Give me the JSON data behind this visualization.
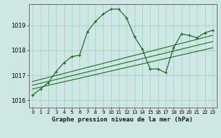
{
  "xlabel": "Graphe pression niveau de la mer (hPa)",
  "bg_color": "#cde8e4",
  "grid_color": "#aad4cc",
  "line_color": "#1a6b1a",
  "axis_color": "#666666",
  "xlim": [
    -0.5,
    23.5
  ],
  "ylim": [
    1015.7,
    1019.85
  ],
  "yticks": [
    1016,
    1017,
    1018,
    1019
  ],
  "xticks": [
    0,
    1,
    2,
    3,
    4,
    5,
    6,
    7,
    8,
    9,
    10,
    11,
    12,
    13,
    14,
    15,
    16,
    17,
    18,
    19,
    20,
    21,
    22,
    23
  ],
  "main_series": [
    [
      0,
      1016.2
    ],
    [
      1,
      1016.45
    ],
    [
      2,
      1016.7
    ],
    [
      3,
      1017.15
    ],
    [
      4,
      1017.5
    ],
    [
      5,
      1017.75
    ],
    [
      6,
      1017.8
    ],
    [
      7,
      1018.75
    ],
    [
      8,
      1019.15
    ],
    [
      9,
      1019.45
    ],
    [
      10,
      1019.65
    ],
    [
      11,
      1019.65
    ],
    [
      12,
      1019.3
    ],
    [
      13,
      1018.55
    ],
    [
      14,
      1018.05
    ],
    [
      15,
      1017.25
    ],
    [
      16,
      1017.25
    ],
    [
      17,
      1017.1
    ],
    [
      18,
      1018.1
    ],
    [
      19,
      1018.65
    ],
    [
      20,
      1018.6
    ],
    [
      21,
      1018.5
    ],
    [
      22,
      1018.7
    ],
    [
      23,
      1018.8
    ]
  ],
  "trend_line1": [
    [
      0,
      1016.45
    ],
    [
      23,
      1018.1
    ]
  ],
  "trend_line2": [
    [
      0,
      1016.6
    ],
    [
      23,
      1018.35
    ]
  ],
  "trend_line3": [
    [
      0,
      1016.75
    ],
    [
      23,
      1018.6
    ]
  ]
}
